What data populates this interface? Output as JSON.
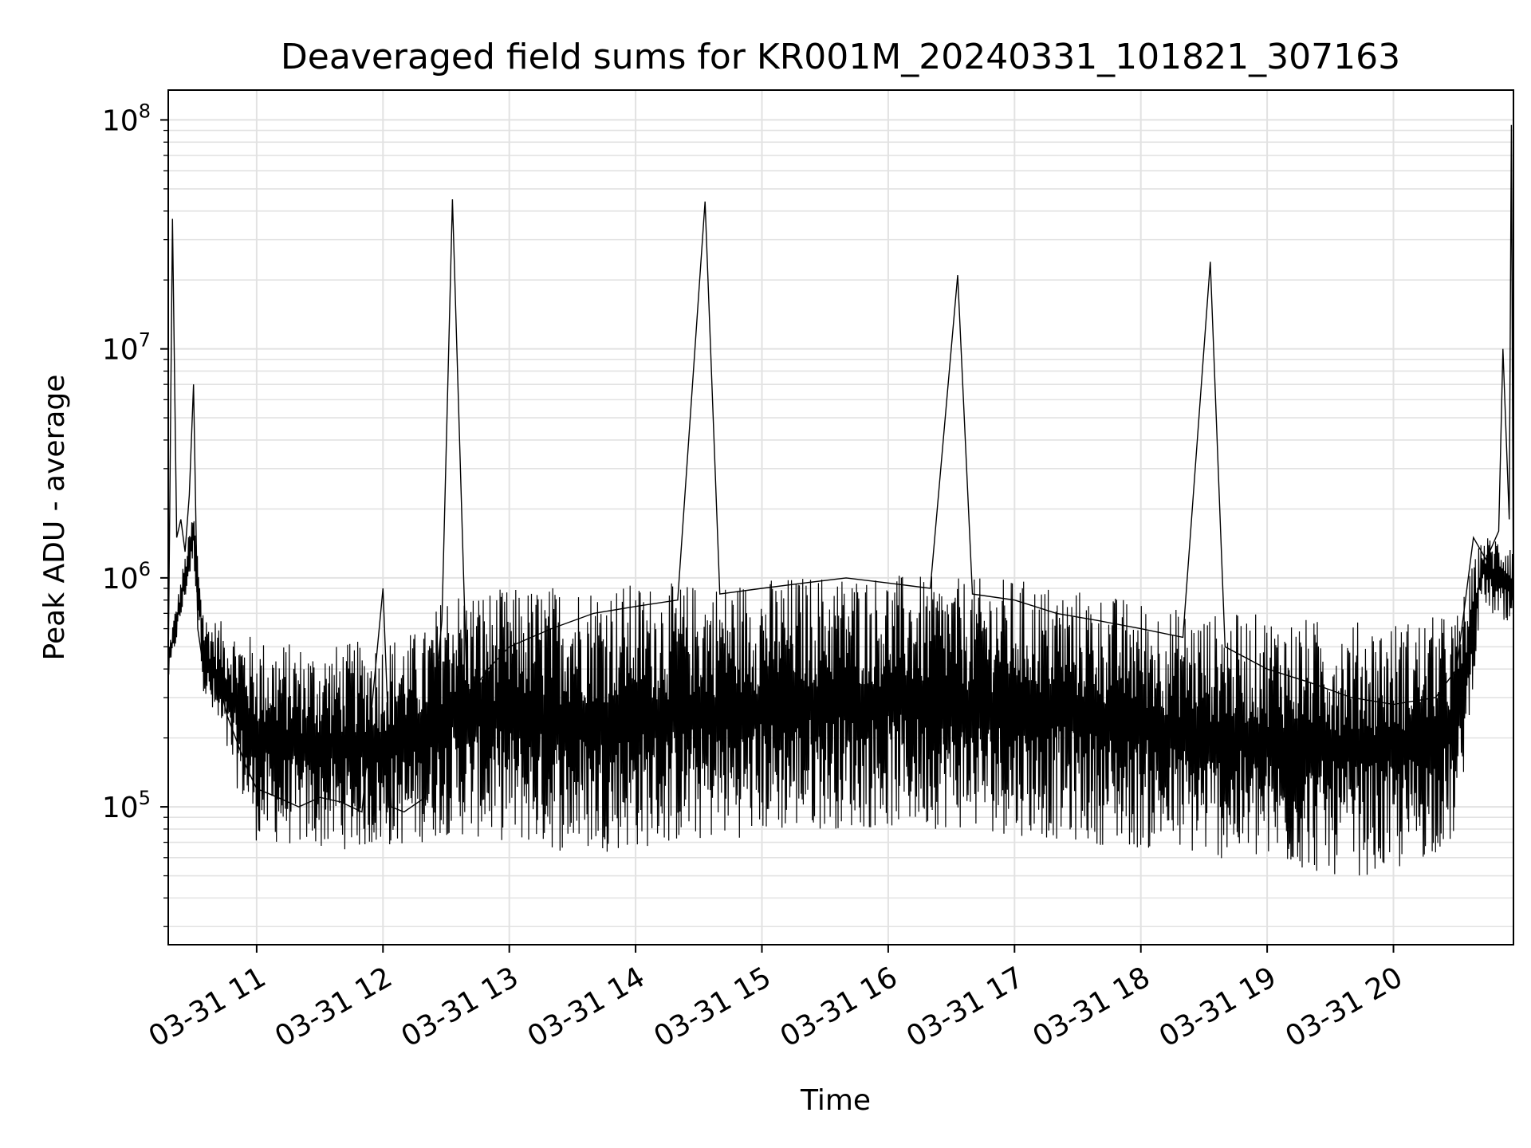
{
  "chart_data": {
    "type": "line",
    "title": "Deaveraged field sums for KR001M_20240331_101821_307163",
    "xlabel": "Time",
    "ylabel": "Peak ADU - average",
    "yscale": "log",
    "ylim": [
      25000,
      135000000
    ],
    "xlim": [
      "03-31 10:18",
      "03-31 20:57"
    ],
    "grid": true,
    "line_color": "#000000",
    "x_tick_labels": [
      "03-31 11",
      "03-31 12",
      "03-31 13",
      "03-31 14",
      "03-31 15",
      "03-31 16",
      "03-31 17",
      "03-31 18",
      "03-31 19",
      "03-31 20"
    ],
    "y_tick_labels": [
      {
        "base": "10",
        "exp": "5",
        "value": 100000
      },
      {
        "base": "10",
        "exp": "6",
        "value": 1000000
      },
      {
        "base": "10",
        "exp": "7",
        "value": 10000000
      },
      {
        "base": "10",
        "exp": "8",
        "value": 100000000
      }
    ],
    "series": [
      {
        "x": [
          "03-31 10:18",
          "03-31 10:20",
          "03-31 10:22",
          "03-31 10:24",
          "03-31 10:26",
          "03-31 10:28",
          "03-31 10:30",
          "03-31 10:32",
          "03-31 10:34",
          "03-31 10:38",
          "03-31 10:42",
          "03-31 10:46",
          "03-31 10:50",
          "03-31 10:55",
          "03-31 11:00",
          "03-31 11:10",
          "03-31 11:20",
          "03-31 11:30",
          "03-31 11:40",
          "03-31 11:50",
          "03-31 12:00",
          "03-31 12:04",
          "03-31 12:10",
          "03-31 12:20",
          "03-31 12:28",
          "03-31 12:33",
          "03-31 12:40",
          "03-31 12:50",
          "03-31 13:00",
          "03-31 13:20",
          "03-31 13:40",
          "03-31 14:00",
          "03-31 14:20",
          "03-31 14:33",
          "03-31 14:40",
          "03-31 15:00",
          "03-31 15:20",
          "03-31 15:40",
          "03-31 16:00",
          "03-31 16:20",
          "03-31 16:33",
          "03-31 16:40",
          "03-31 17:00",
          "03-31 17:20",
          "03-31 17:40",
          "03-31 18:00",
          "03-31 18:20",
          "03-31 18:33",
          "03-31 18:40",
          "03-31 19:00",
          "03-31 19:20",
          "03-31 19:40",
          "03-31 20:00",
          "03-31 20:20",
          "03-31 20:30",
          "03-31 20:38",
          "03-31 20:44",
          "03-31 20:50",
          "03-31 20:52",
          "03-31 20:55",
          "03-31 20:56",
          "03-31 20:57"
        ],
        "y": [
          400000,
          37000000,
          1500000,
          1800000,
          1300000,
          2300000,
          7000000,
          600000,
          450000,
          400000,
          350000,
          250000,
          200000,
          150000,
          120000,
          110000,
          100000,
          110000,
          105000,
          95000,
          900000,
          100000,
          95000,
          110000,
          650000,
          45000000,
          300000,
          400000,
          500000,
          600000,
          700000,
          750000,
          800000,
          44000000,
          850000,
          900000,
          950000,
          1000000,
          950000,
          900000,
          21000000,
          850000,
          800000,
          700000,
          650000,
          600000,
          550000,
          24000000,
          500000,
          400000,
          350000,
          300000,
          280000,
          300000,
          400000,
          1500000,
          1200000,
          1600000,
          10000000,
          1800000,
          95000000,
          600000
        ]
      }
    ],
    "envelope_top": [
      [
        "03-31 10:18",
        500000
      ],
      [
        "03-31 10:30",
        2000000
      ],
      [
        "03-31 10:35",
        700000
      ],
      [
        "03-31 11:00",
        550000
      ],
      [
        "03-31 11:30",
        500000
      ],
      [
        "03-31 12:00",
        550000
      ],
      [
        "03-31 12:20",
        600000
      ],
      [
        "03-31 12:30",
        900000
      ],
      [
        "03-31 13:00",
        900000
      ],
      [
        "03-31 13:30",
        950000
      ],
      [
        "03-31 14:00",
        950000
      ],
      [
        "03-31 14:30",
        950000
      ],
      [
        "03-31 15:00",
        1000000
      ],
      [
        "03-31 15:30",
        1050000
      ],
      [
        "03-31 16:00",
        1050000
      ],
      [
        "03-31 16:30",
        1000000
      ],
      [
        "03-31 17:00",
        1000000
      ],
      [
        "03-31 17:30",
        900000
      ],
      [
        "03-31 18:00",
        800000
      ],
      [
        "03-31 18:30",
        700000
      ],
      [
        "03-31 19:00",
        700000
      ],
      [
        "03-31 19:30",
        650000
      ],
      [
        "03-31 20:00",
        650000
      ],
      [
        "03-31 20:30",
        700000
      ],
      [
        "03-31 20:42",
        1500000
      ],
      [
        "03-31 20:57",
        1600000
      ]
    ],
    "envelope_bottom": [
      [
        "03-31 10:18",
        350000
      ],
      [
        "03-31 10:30",
        1200000
      ],
      [
        "03-31 10:35",
        300000
      ],
      [
        "03-31 11:00",
        70000
      ],
      [
        "03-31 11:30",
        65000
      ],
      [
        "03-31 12:00",
        65000
      ],
      [
        "03-31 12:20",
        70000
      ],
      [
        "03-31 12:30",
        75000
      ],
      [
        "03-31 13:00",
        70000
      ],
      [
        "03-31 13:30",
        62000
      ],
      [
        "03-31 14:00",
        65000
      ],
      [
        "03-31 14:30",
        70000
      ],
      [
        "03-31 15:00",
        75000
      ],
      [
        "03-31 15:30",
        80000
      ],
      [
        "03-31 16:00",
        80000
      ],
      [
        "03-31 16:30",
        80000
      ],
      [
        "03-31 17:00",
        75000
      ],
      [
        "03-31 17:30",
        70000
      ],
      [
        "03-31 18:00",
        65000
      ],
      [
        "03-31 18:30",
        60000
      ],
      [
        "03-31 19:00",
        55000
      ],
      [
        "03-31 19:30",
        50000
      ],
      [
        "03-31 20:00",
        50000
      ],
      [
        "03-31 20:30",
        70000
      ],
      [
        "03-31 20:42",
        800000
      ],
      [
        "03-31 20:57",
        500000
      ]
    ]
  }
}
